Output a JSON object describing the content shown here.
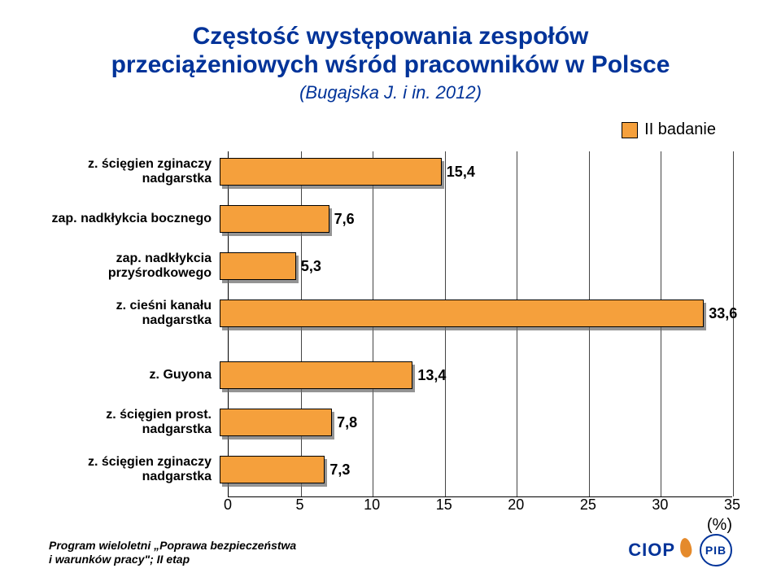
{
  "title": {
    "line1": "Częstość występowania zespołów",
    "line2": "przeciążeniowych wśród pracowników w Polsce",
    "sub": "(Bugajska J. i in. 2012)",
    "color": "#003399",
    "fontsize_main": 30,
    "fontsize_sub": 22
  },
  "legend": {
    "label": "II badanie",
    "swatch_color": "#f5a03c",
    "fontsize": 20
  },
  "chart": {
    "type": "bar",
    "orientation": "horizontal",
    "xlim": [
      0,
      35
    ],
    "xtick_step": 5,
    "xticks": [
      0,
      5,
      10,
      15,
      20,
      25,
      30,
      35
    ],
    "x_axis_label": "(%)",
    "bar_color": "#f5a03c",
    "bar_border": "#000000",
    "shadow_color": "#666666",
    "grid_color": "#444444",
    "background_color": "#ffffff",
    "label_fontsize": 16,
    "value_fontsize": 18,
    "tick_fontsize": 18,
    "categories": [
      {
        "label": "z. ścięgien zginaczy\nnadgarstka",
        "value": 15.4,
        "display": "15,4"
      },
      {
        "label": "zap. nadkłykcia bocznego",
        "value": 7.6,
        "display": "7,6"
      },
      {
        "label": "zap. nadkłykcia\nprzyśrodkowego",
        "value": 5.3,
        "display": "5,3"
      },
      {
        "label": "z. cieśni kanału nadgarstka",
        "value": 33.6,
        "display": "33,6"
      },
      {
        "label": "z. Guyona",
        "value": 13.4,
        "display": "13,4"
      },
      {
        "label": "z. ścięgien prost.\nnadgarstka",
        "value": 7.8,
        "display": "7,8"
      },
      {
        "label": "z. ścięgien zginaczy\nnadgarstka",
        "value": 7.3,
        "display": "7,3"
      }
    ],
    "group_break_after_index": 3
  },
  "footer": {
    "line1": "Program wieloletni „Poprawa bezpieczeństwa",
    "line2": "i warunków pracy\"; II etap",
    "fontsize": 14
  },
  "logo": {
    "text": "CIOP",
    "badge": "PIB",
    "text_color": "#003399",
    "flame_color": "#e58a2b"
  }
}
